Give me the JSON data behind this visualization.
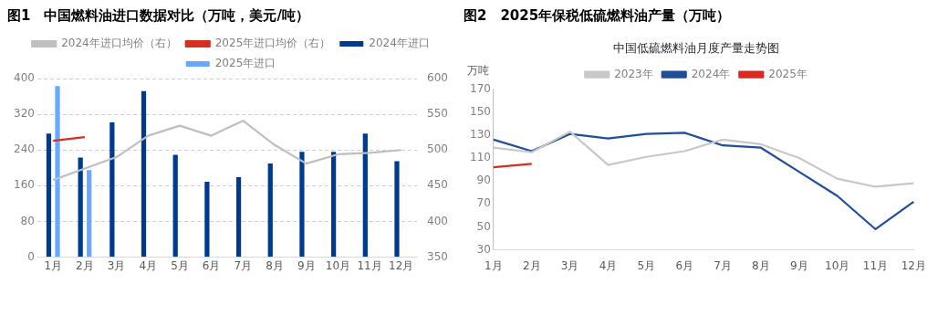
{
  "chart_data": [
    {
      "type": "bar",
      "title": "图1　中国燃料油进口数据对比（万吨，美元/吨）",
      "categories": [
        "1月",
        "2月",
        "3月",
        "4月",
        "5月",
        "6月",
        "7月",
        "8月",
        "9月",
        "10月",
        "11月",
        "12月"
      ],
      "series": [
        {
          "name": "2024年进口",
          "color": "#003a8c",
          "values": [
            277,
            223,
            302,
            372,
            229,
            169,
            179,
            210,
            236,
            236,
            277,
            215
          ]
        },
        {
          "name": "2025年进口",
          "color": "#6aa8ff",
          "values": [
            383,
            195,
            null,
            null,
            null,
            null,
            null,
            null,
            null,
            null,
            null,
            null
          ]
        },
        {
          "name": "2024年进口均价（右）",
          "type": "line",
          "axis": "y2",
          "color": "#bfbfbf",
          "values": [
            458,
            474,
            490,
            520,
            534,
            520,
            541,
            507,
            481,
            494,
            496,
            500
          ]
        },
        {
          "name": "2025年进口均价（右）",
          "type": "line",
          "axis": "y2",
          "color": "#d62d20",
          "values": [
            513,
            518,
            null,
            null,
            null,
            null,
            null,
            null,
            null,
            null,
            null,
            null
          ]
        }
      ],
      "ylim": [
        0,
        400
      ],
      "yticks": [
        0,
        80,
        160,
        240,
        320,
        400
      ],
      "y2lim": [
        350,
        600
      ],
      "y2ticks": [
        350,
        400,
        450,
        500,
        550,
        600
      ],
      "grid": "y",
      "legend": "top"
    },
    {
      "type": "line",
      "title": "图2　2025年保税低硫燃料油产量（万吨）",
      "subtitle": "中国低硫燃料油月度产量走势图",
      "ylabel": "万吨",
      "categories": [
        "1月",
        "2月",
        "3月",
        "4月",
        "5月",
        "6月",
        "7月",
        "8月",
        "9月",
        "10月",
        "11月",
        "12月"
      ],
      "series": [
        {
          "name": "2023年",
          "color": "#c8c8c8",
          "values": [
            119,
            115,
            133,
            104,
            111,
            116,
            126,
            122,
            110,
            92,
            85,
            88
          ]
        },
        {
          "name": "2024年",
          "color": "#1f4e9a",
          "values": [
            126,
            116,
            131,
            127,
            131,
            132,
            121,
            119,
            98,
            77,
            48,
            72
          ]
        },
        {
          "name": "2025年",
          "color": "#d62d20",
          "values": [
            102,
            105,
            null,
            null,
            null,
            null,
            null,
            null,
            null,
            null,
            null,
            null
          ]
        }
      ],
      "ylim": [
        30,
        170
      ],
      "yticks": [
        30,
        50,
        70,
        90,
        110,
        130,
        150,
        170
      ],
      "grid": false,
      "legend": "top"
    }
  ]
}
